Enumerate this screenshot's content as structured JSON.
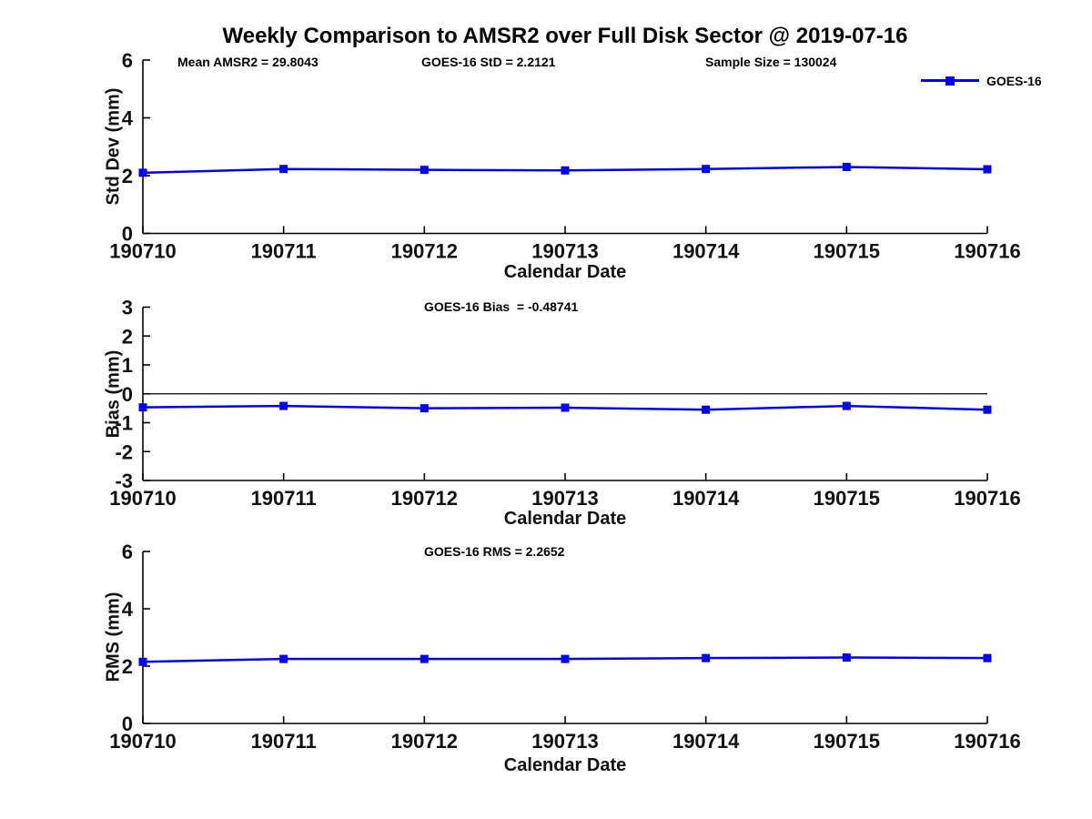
{
  "title": "Weekly Comparison to AMSR2 over Full Disk Sector @ 2019-07-16",
  "colors": {
    "line": "#0000EE",
    "marker": "#0000FF",
    "axis": "#000000",
    "background": "#FFFFFF"
  },
  "legend": {
    "label": "GOES-16",
    "position": "top-right-outside"
  },
  "chart_data": [
    {
      "type": "line",
      "panel": "std-dev",
      "ylabel": "Std Dev (mm)",
      "xlabel": "Calendar Date",
      "categories": [
        "190710",
        "190711",
        "190712",
        "190713",
        "190714",
        "190715",
        "190716"
      ],
      "series": [
        {
          "name": "GOES-16",
          "marker": "square",
          "values": [
            2.1,
            2.23,
            2.2,
            2.18,
            2.23,
            2.3,
            2.22
          ]
        }
      ],
      "ylim": [
        0,
        6
      ],
      "yticks": [
        0,
        2,
        4,
        6
      ],
      "grid": false,
      "annotations": [
        "Mean AMSR2 = 29.8043",
        "GOES-16 StD = 2.2121",
        "Sample Size = 130024"
      ]
    },
    {
      "type": "line",
      "panel": "bias",
      "ylabel": "Bias (mm)",
      "xlabel": "Calendar Date",
      "categories": [
        "190710",
        "190711",
        "190712",
        "190713",
        "190714",
        "190715",
        "190716"
      ],
      "series": [
        {
          "name": "GOES-16",
          "marker": "square",
          "values": [
            -0.47,
            -0.42,
            -0.5,
            -0.48,
            -0.55,
            -0.42,
            -0.55
          ]
        }
      ],
      "ylim": [
        -3,
        3
      ],
      "yticks": [
        3,
        2,
        1,
        0,
        -1,
        -2,
        -3
      ],
      "zero_line": true,
      "grid": false,
      "annotations": [
        "GOES-16 Bias  = -0.48741"
      ]
    },
    {
      "type": "line",
      "panel": "rms",
      "ylabel": "RMS (mm)",
      "xlabel": "Calendar Date",
      "categories": [
        "190710",
        "190711",
        "190712",
        "190713",
        "190714",
        "190715",
        "190716"
      ],
      "series": [
        {
          "name": "GOES-16",
          "marker": "square",
          "values": [
            2.15,
            2.25,
            2.25,
            2.25,
            2.28,
            2.3,
            2.28
          ]
        }
      ],
      "ylim": [
        0,
        6
      ],
      "yticks": [
        0,
        2,
        4,
        6
      ],
      "grid": false,
      "annotations": [
        "GOES-16 RMS = 2.2652"
      ]
    }
  ]
}
